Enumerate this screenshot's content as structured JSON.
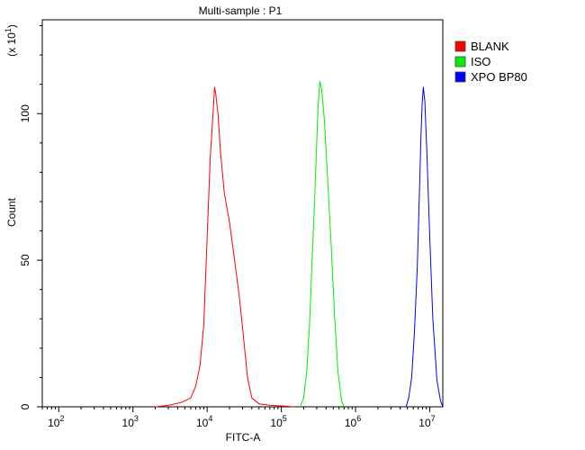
{
  "chart_data": {
    "type": "line",
    "title": "Multi-sample : P1",
    "xlabel": "FITC-A",
    "ylabel": "Count",
    "y_multiplier_label": "(x 10",
    "y_multiplier_exp": "1",
    "y_multiplier_close": ")",
    "x_scale": "log",
    "xlim": [
      60,
      15000000
    ],
    "ylim": [
      0,
      132
    ],
    "x_ticks": [
      {
        "base": "10",
        "exp": "2",
        "value": 100
      },
      {
        "base": "10",
        "exp": "3",
        "value": 1000
      },
      {
        "base": "10",
        "exp": "4",
        "value": 10000
      },
      {
        "base": "10",
        "exp": "5",
        "value": 100000
      },
      {
        "base": "10",
        "exp": "6",
        "value": 1000000
      },
      {
        "base": "10",
        "exp": "7",
        "value": 10000000
      }
    ],
    "y_ticks": [
      {
        "label": "0",
        "value": 0
      },
      {
        "label": "50",
        "value": 50
      },
      {
        "label": "100",
        "value": 100
      }
    ],
    "legend_position": "top-right",
    "series": [
      {
        "name": "BLANK",
        "color": "#ff0000",
        "x": [
          2000,
          3000,
          4500,
          6000,
          7000,
          8000,
          9000,
          10000,
          11000,
          12000,
          12600,
          13000,
          14000,
          15000,
          17000,
          20000,
          24000,
          27000,
          30000,
          35000,
          40000,
          50000,
          70000,
          100000,
          150000
        ],
        "y": [
          0,
          0.5,
          1.5,
          3,
          7,
          14,
          28,
          58,
          85,
          100,
          109,
          107,
          100,
          88,
          73,
          63,
          48,
          38,
          27,
          10,
          3,
          1,
          0.5,
          0.3,
          0
        ]
      },
      {
        "name": "ISO",
        "color": "#00ee00",
        "x": [
          180000,
          200000,
          220000,
          240000,
          260000,
          280000,
          300000,
          310000,
          320000,
          330000,
          350000,
          380000,
          420000,
          470000,
          520000,
          580000,
          650000,
          700000
        ],
        "y": [
          0,
          3,
          12,
          28,
          50,
          70,
          90,
          100,
          106,
          111,
          108,
          98,
          78,
          55,
          32,
          12,
          2,
          0
        ]
      },
      {
        "name": "XPO BP80",
        "color": "#0000ff",
        "x": [
          4800000,
          5200000,
          5700000,
          6200000,
          6800000,
          7300000,
          7600000,
          7900000,
          8200000,
          8600000,
          9200000,
          10000000,
          11000000,
          12500000,
          14000000,
          15000000
        ],
        "y": [
          0,
          3,
          10,
          25,
          48,
          75,
          92,
          103,
          109,
          104,
          85,
          58,
          30,
          9,
          2,
          0
        ]
      }
    ]
  }
}
